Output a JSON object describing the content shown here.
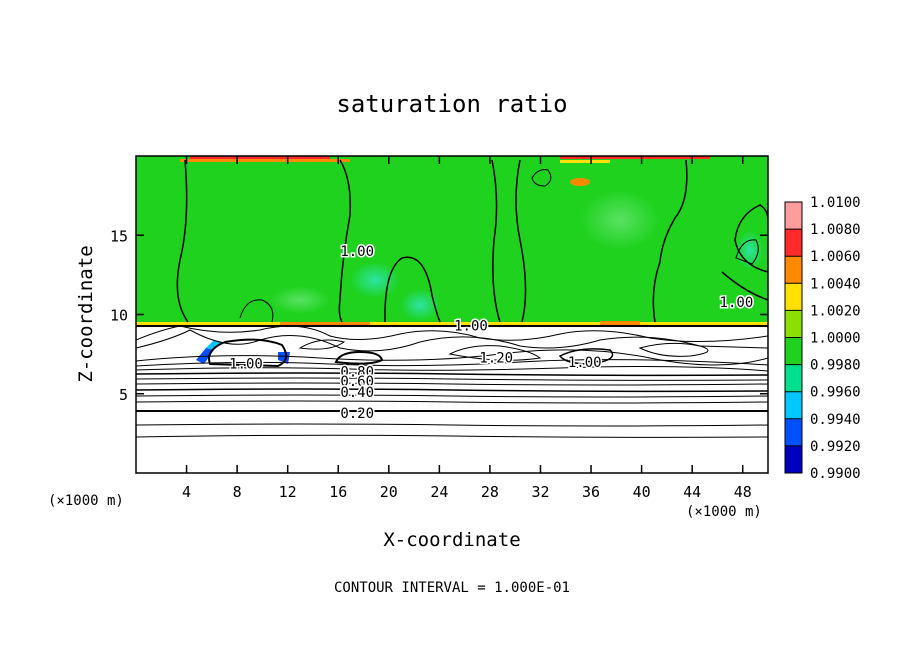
{
  "chart_data": {
    "type": "heatmap",
    "title": "saturation ratio",
    "xlabel": "X-coordinate",
    "ylabel": "Z-coordinate",
    "x_unit": "(×1000 m)",
    "y_unit": "(×1000 m)",
    "footer": "CONTOUR INTERVAL = 1.000E-01",
    "xlim": [
      0,
      50
    ],
    "ylim": [
      0,
      20
    ],
    "x_ticks": [
      4,
      8,
      12,
      16,
      20,
      24,
      28,
      32,
      36,
      40,
      44,
      48
    ],
    "y_ticks": [
      5,
      10,
      15
    ],
    "colorbar": {
      "levels": [
        "1.0100",
        "1.0080",
        "1.0060",
        "1.0040",
        "1.0020",
        "1.0000",
        "0.9980",
        "0.9960",
        "0.9940",
        "0.9920",
        "0.9900"
      ],
      "colors": [
        "#ff9c9c",
        "#ff2a2a",
        "#ff8a00",
        "#ffe000",
        "#8ce000",
        "#1ed21e",
        "#00e08c",
        "#00c8ff",
        "#0050ff",
        "#0000c0",
        "#6a1aa0"
      ]
    },
    "cloud_base_z": 9.5,
    "contour_labels": [
      {
        "text": "1.00",
        "x": 17.5,
        "z": 14.0
      },
      {
        "text": "1.00",
        "x": 26.5,
        "z": 9.3
      },
      {
        "text": "1.00",
        "x": 47.5,
        "z": 10.8
      },
      {
        "text": "1.00",
        "x": 8.7,
        "z": 6.9
      },
      {
        "text": "1.00",
        "x": 35.5,
        "z": 7.0
      },
      {
        "text": "1.20",
        "x": 28.5,
        "z": 7.3
      },
      {
        "text": "0.80",
        "x": 17.5,
        "z": 6.4
      },
      {
        "text": "0.60",
        "x": 17.5,
        "z": 5.8
      },
      {
        "text": "0.40",
        "x": 17.5,
        "z": 5.1
      },
      {
        "text": "0.20",
        "x": 17.5,
        "z": 3.8
      }
    ]
  }
}
